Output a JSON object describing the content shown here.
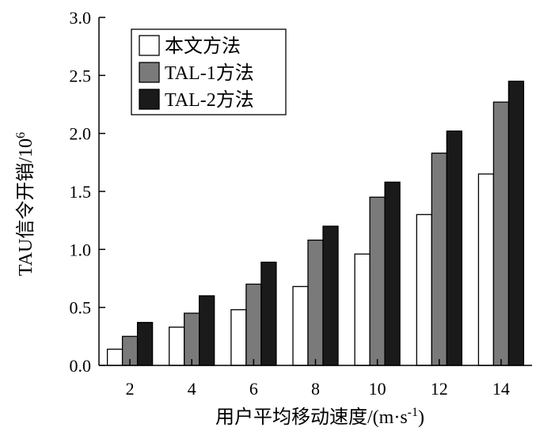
{
  "chart_data": {
    "type": "bar",
    "categories": [
      "2",
      "4",
      "6",
      "8",
      "10",
      "12",
      "14"
    ],
    "series": [
      {
        "name": "本文方法",
        "color": "#ffffff",
        "values": [
          0.14,
          0.33,
          0.48,
          0.68,
          0.96,
          1.3,
          1.65
        ]
      },
      {
        "name": "TAL-1方法",
        "color": "#7a7a7a",
        "values": [
          0.25,
          0.45,
          0.7,
          1.08,
          1.45,
          1.83,
          2.27
        ]
      },
      {
        "name": "TAL-2方法",
        "color": "#1a1a1a",
        "values": [
          0.37,
          0.6,
          0.89,
          1.2,
          1.58,
          2.02,
          2.45
        ]
      }
    ],
    "xlabel": "用户平均移动速度/(m·s",
    "xlabel_sup": "-1",
    "xlabel_close": ")",
    "ylabel": "TAU信令开销/10",
    "ylabel_sup": "6",
    "ylim": [
      0,
      3.0
    ],
    "yticks": [
      "0.0",
      "0.5",
      "1.0",
      "1.5",
      "2.0",
      "2.5",
      "3.0"
    ],
    "legend_position": "top-left",
    "grid": false
  }
}
